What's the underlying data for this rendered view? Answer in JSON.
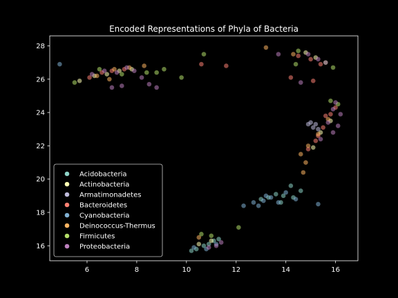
{
  "chart_data": {
    "type": "scatter",
    "title": "Encoded Representations of Phyla of Bacteria",
    "xlabel": "",
    "ylabel": "",
    "xlim": [
      4.5,
      16.9
    ],
    "ylim": [
      15.1,
      28.6
    ],
    "xticks": [
      6,
      8,
      10,
      12,
      14,
      16
    ],
    "yticks": [
      16,
      18,
      20,
      22,
      24,
      26,
      28
    ],
    "grid": false,
    "legend_position": "lower-left",
    "background": "#000000",
    "marker_opacity": 0.55,
    "series": [
      {
        "name": "Acidobacteria",
        "color": "#8dd3c7",
        "points": [
          [
            10.4,
            15.8
          ],
          [
            10.7,
            16.0
          ],
          [
            10.9,
            16.1
          ],
          [
            11.1,
            16.3
          ],
          [
            13.0,
            18.8
          ],
          [
            13.3,
            18.9
          ],
          [
            13.6,
            19.1
          ],
          [
            13.9,
            19.0
          ],
          [
            14.3,
            18.9
          ],
          [
            14.6,
            19.3
          ],
          [
            14.2,
            19.6
          ],
          [
            13.8,
            18.6
          ],
          [
            10.2,
            15.7
          ],
          [
            11.3,
            16.4
          ]
        ]
      },
      {
        "name": "Actinobacteria",
        "color": "#ffffb3",
        "points": [
          [
            6.3,
            26.2
          ],
          [
            6.8,
            26.3
          ],
          [
            7.3,
            26.5
          ],
          [
            7.8,
            26.6
          ],
          [
            14.8,
            27.6
          ],
          [
            15.2,
            27.3
          ],
          [
            15.4,
            22.8
          ],
          [
            15.8,
            23.5
          ],
          [
            15.1,
            21.9
          ],
          [
            5.7,
            25.9
          ],
          [
            10.5,
            16.1
          ],
          [
            11.0,
            16.3
          ]
        ]
      },
      {
        "name": "Armatimonadetes",
        "color": "#bebada",
        "points": [
          [
            15.0,
            23.4
          ],
          [
            15.2,
            23.3
          ],
          [
            15.1,
            23.1
          ],
          [
            15.3,
            23.0
          ],
          [
            14.9,
            23.3
          ]
        ]
      },
      {
        "name": "Bacteroidetes",
        "color": "#fb8072",
        "points": [
          [
            6.1,
            26.1
          ],
          [
            6.6,
            26.4
          ],
          [
            7.0,
            26.5
          ],
          [
            7.5,
            26.6
          ],
          [
            14.5,
            27.4
          ],
          [
            15.0,
            27.2
          ],
          [
            15.4,
            26.9
          ],
          [
            15.2,
            22.3
          ],
          [
            15.5,
            23.1
          ],
          [
            15.8,
            23.9
          ],
          [
            16.0,
            24.3
          ],
          [
            14.9,
            21.8
          ],
          [
            15.3,
            22.6
          ],
          [
            15.6,
            23.8
          ],
          [
            10.6,
            26.9
          ],
          [
            11.6,
            26.8
          ],
          [
            14.2,
            26.1
          ],
          [
            15.1,
            25.9
          ]
        ]
      },
      {
        "name": "Cyanobacteria",
        "color": "#80b1d3",
        "points": [
          [
            13.1,
            18.7
          ],
          [
            13.4,
            18.9
          ],
          [
            13.7,
            18.6
          ],
          [
            14.0,
            19.2
          ],
          [
            14.4,
            18.8
          ],
          [
            13.2,
            19.0
          ],
          [
            12.3,
            18.4
          ],
          [
            12.9,
            18.4
          ],
          [
            10.3,
            15.9
          ],
          [
            10.8,
            15.8
          ],
          [
            11.2,
            16.1
          ],
          [
            4.9,
            26.9
          ],
          [
            15.3,
            18.5
          ],
          [
            12.7,
            18.6
          ]
        ]
      },
      {
        "name": "Deinococcus-Thermus",
        "color": "#fdb462",
        "points": [
          [
            6.4,
            26.2
          ],
          [
            7.1,
            26.6
          ],
          [
            7.7,
            26.7
          ],
          [
            8.3,
            26.8
          ],
          [
            14.9,
            22.0
          ],
          [
            15.3,
            22.7
          ],
          [
            14.6,
            21.5
          ],
          [
            15.7,
            23.6
          ],
          [
            13.2,
            27.9
          ],
          [
            14.3,
            27.5
          ],
          [
            6.9,
            26.0
          ],
          [
            10.5,
            16.5
          ],
          [
            14.7,
            20.4
          ],
          [
            14.8,
            21.0
          ]
        ]
      },
      {
        "name": "Firmicutes",
        "color": "#b3de69",
        "points": [
          [
            6.5,
            26.6
          ],
          [
            7.4,
            26.3
          ],
          [
            8.4,
            26.4
          ],
          [
            8.8,
            26.4
          ],
          [
            9.1,
            26.6
          ],
          [
            9.8,
            26.1
          ],
          [
            10.7,
            27.5
          ],
          [
            14.5,
            27.7
          ],
          [
            15.6,
            27.0
          ],
          [
            15.9,
            26.7
          ],
          [
            15.8,
            24.7
          ],
          [
            16.1,
            24.5
          ],
          [
            12.1,
            17.1
          ],
          [
            11.0,
            16.6
          ],
          [
            14.4,
            26.9
          ],
          [
            5.5,
            25.8
          ],
          [
            10.6,
            16.7
          ]
        ]
      },
      {
        "name": "Proteobacteria",
        "color": "#bc80bd",
        "points": [
          [
            6.2,
            26.3
          ],
          [
            6.7,
            26.5
          ],
          [
            7.2,
            26.4
          ],
          [
            7.6,
            26.7
          ],
          [
            7.9,
            26.5
          ],
          [
            7.0,
            25.5
          ],
          [
            7.4,
            25.6
          ],
          [
            8.5,
            25.7
          ],
          [
            8.8,
            25.5
          ],
          [
            14.9,
            27.5
          ],
          [
            15.3,
            27.2
          ],
          [
            15.6,
            27.0
          ],
          [
            15.9,
            24.2
          ],
          [
            16.2,
            23.9
          ],
          [
            15.7,
            23.4
          ],
          [
            15.9,
            22.8
          ],
          [
            16.0,
            24.6
          ],
          [
            15.4,
            22.4
          ],
          [
            14.6,
            25.8
          ],
          [
            11.2,
            16.0
          ],
          [
            11.4,
            16.2
          ],
          [
            10.9,
            15.9
          ],
          [
            13.7,
            27.5
          ],
          [
            8.2,
            26.1
          ],
          [
            16.1,
            23.2
          ]
        ]
      }
    ]
  }
}
